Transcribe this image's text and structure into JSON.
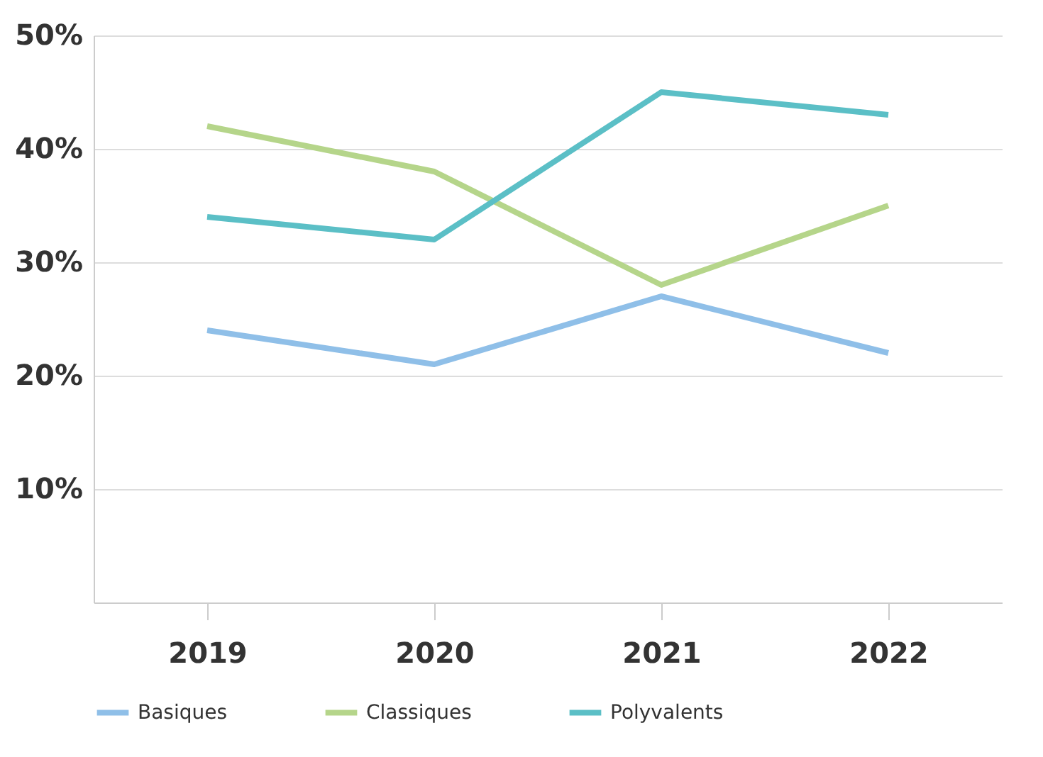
{
  "chart_data": {
    "type": "line",
    "categories": [
      "2019",
      "2020",
      "2021",
      "2022"
    ],
    "series": [
      {
        "name": "Basiques",
        "color": "#8fbfe8",
        "values": [
          24,
          21,
          27,
          22
        ]
      },
      {
        "name": "Classiques",
        "color": "#b5d58a",
        "values": [
          42,
          38,
          28,
          35
        ]
      },
      {
        "name": "Polyvalents",
        "color": "#5bbfc6",
        "values": [
          34,
          32,
          45,
          43
        ]
      }
    ],
    "ylim": [
      0,
      50
    ],
    "yticks": [
      {
        "value": 10,
        "label": "10%"
      },
      {
        "value": 20,
        "label": "20%"
      },
      {
        "value": 30,
        "label": "30%"
      },
      {
        "value": 40,
        "label": "40%"
      },
      {
        "value": 50,
        "label": "50%"
      }
    ],
    "grid": "y",
    "legend": "bottom",
    "marker": "none",
    "line_style": "solid"
  }
}
